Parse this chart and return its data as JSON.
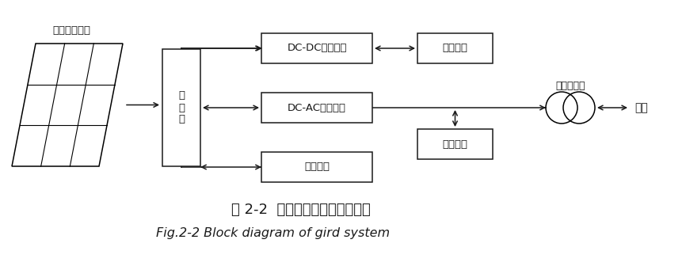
{
  "title_cn": "图 2-2  并网发电系统的结构框图",
  "title_en": "Fig.2-2 Block diagram of gird system",
  "label_solar": "光伏电池阵列",
  "label_controller": "控\n制\n器",
  "label_dcdc": "DC-DC转换电路",
  "label_dcload": "直流负载",
  "label_dcac": "DC-AC逆变电路",
  "label_battery": "蓄电池组",
  "label_acload": "交流负载",
  "label_transformer": "工频变压器",
  "label_grid": "电网",
  "bg_color": "#ffffff",
  "box_edge": "#1a1a1a",
  "box_fill": "#ffffff",
  "line_color": "#1a1a1a",
  "font_color": "#1a1a1a"
}
